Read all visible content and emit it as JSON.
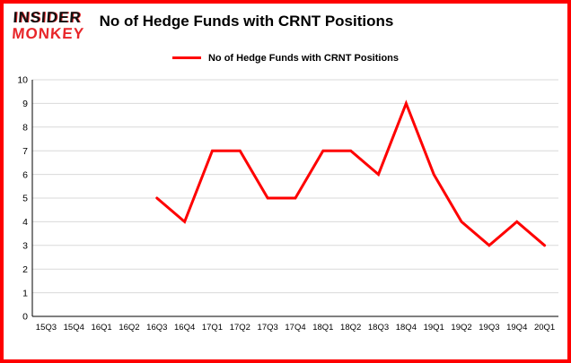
{
  "page": {
    "logo": {
      "line1": "INSIDER",
      "line2": "MONKEY"
    },
    "title": "No of Hedge Funds with CRNT Positions"
  },
  "legend": {
    "label": "No of Hedge Funds with CRNT Positions"
  },
  "chart_data": {
    "type": "line",
    "title": "No of Hedge Funds with CRNT Positions",
    "categories": [
      "15Q3",
      "15Q4",
      "16Q1",
      "16Q2",
      "16Q3",
      "16Q4",
      "17Q1",
      "17Q2",
      "17Q3",
      "17Q4",
      "18Q1",
      "18Q2",
      "18Q3",
      "18Q4",
      "19Q1",
      "19Q2",
      "19Q3",
      "19Q4",
      "20Q1"
    ],
    "series": [
      {
        "name": "No of Hedge Funds with CRNT Positions",
        "color": "#fe0000",
        "values": [
          null,
          null,
          null,
          null,
          5,
          4,
          7,
          7,
          5,
          5,
          7,
          7,
          6,
          9,
          6,
          4,
          3,
          4,
          3
        ]
      }
    ],
    "ylim": [
      0,
      10
    ],
    "yticks": [
      0,
      1,
      2,
      3,
      4,
      5,
      6,
      7,
      8,
      9,
      10
    ],
    "grid": true,
    "legend_position": "top"
  },
  "colors": {
    "border": "#fe0000",
    "accent": "#fe0000",
    "grid": "#d9d9d9",
    "axis": "#000000",
    "logo_red": "#e8262a"
  }
}
